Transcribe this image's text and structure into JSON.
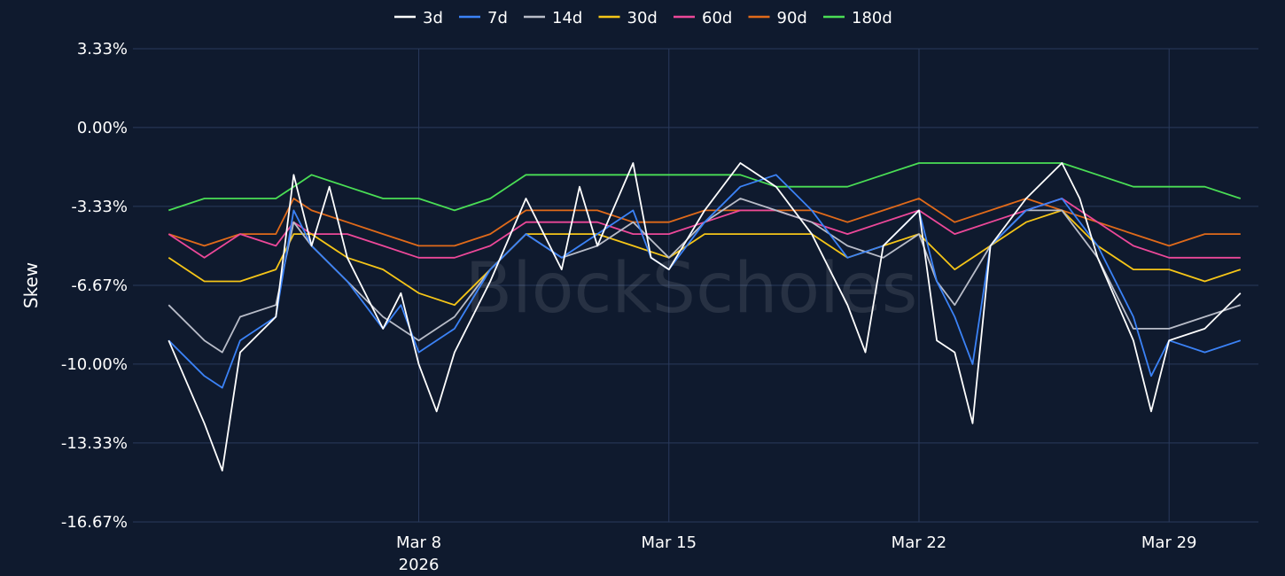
{
  "chart_data": {
    "type": "line",
    "ylabel": "Skew",
    "watermark": "BlockScholes",
    "yticks": [
      3.33,
      0.0,
      -3.33,
      -6.67,
      -10.0,
      -13.33,
      -16.67
    ],
    "ytick_labels": [
      "3.33%",
      "0.00%",
      "-3.33%",
      "-6.67%",
      "-10.00%",
      "-13.33%",
      "-16.67%"
    ],
    "ylim": [
      -16.67,
      3.33
    ],
    "xlim": [
      "2026-02-28",
      "2026-03-31"
    ],
    "xticks": [
      {
        "date": "2026-03-08",
        "label": "Mar 8",
        "sublabel": "2026"
      },
      {
        "date": "2026-03-15",
        "label": "Mar 15",
        "sublabel": ""
      },
      {
        "date": "2026-03-22",
        "label": "Mar 22",
        "sublabel": ""
      },
      {
        "date": "2026-03-29",
        "label": "Mar 29",
        "sublabel": ""
      }
    ],
    "grid": true,
    "legend_position": "top-center",
    "series": [
      {
        "name": "3d",
        "color": "#ffffff",
        "points": [
          [
            "2026-03-01",
            -9.0
          ],
          [
            "2026-03-02",
            -12.5
          ],
          [
            "2026-03-02T12",
            -14.5
          ],
          [
            "2026-03-03",
            -9.5
          ],
          [
            "2026-03-04",
            -8.0
          ],
          [
            "2026-03-04T12",
            -2.0
          ],
          [
            "2026-03-05",
            -5.0
          ],
          [
            "2026-03-05T12",
            -2.5
          ],
          [
            "2026-03-06",
            -5.5
          ],
          [
            "2026-03-07",
            -8.5
          ],
          [
            "2026-03-07T12",
            -7.0
          ],
          [
            "2026-03-08",
            -10.0
          ],
          [
            "2026-03-08T12",
            -12.0
          ],
          [
            "2026-03-09",
            -9.5
          ],
          [
            "2026-03-10",
            -6.5
          ],
          [
            "2026-03-11",
            -3.0
          ],
          [
            "2026-03-12",
            -6.0
          ],
          [
            "2026-03-12T12",
            -2.5
          ],
          [
            "2026-03-13",
            -5.0
          ],
          [
            "2026-03-14",
            -1.5
          ],
          [
            "2026-03-14T12",
            -5.5
          ],
          [
            "2026-03-15",
            -6.0
          ],
          [
            "2026-03-16",
            -3.5
          ],
          [
            "2026-03-17",
            -1.5
          ],
          [
            "2026-03-18",
            -2.5
          ],
          [
            "2026-03-19",
            -4.5
          ],
          [
            "2026-03-20",
            -7.5
          ],
          [
            "2026-03-20T12",
            -9.5
          ],
          [
            "2026-03-21",
            -5.0
          ],
          [
            "2026-03-22",
            -3.5
          ],
          [
            "2026-03-22T12",
            -9.0
          ],
          [
            "2026-03-23",
            -9.5
          ],
          [
            "2026-03-23T12",
            -12.5
          ],
          [
            "2026-03-24",
            -5.0
          ],
          [
            "2026-03-25",
            -3.0
          ],
          [
            "2026-03-26",
            -1.5
          ],
          [
            "2026-03-26T12",
            -3.0
          ],
          [
            "2026-03-27",
            -5.5
          ],
          [
            "2026-03-28",
            -9.0
          ],
          [
            "2026-03-28T12",
            -12.0
          ],
          [
            "2026-03-29",
            -9.0
          ],
          [
            "2026-03-30",
            -8.5
          ],
          [
            "2026-03-31",
            -7.0
          ]
        ]
      },
      {
        "name": "7d",
        "color": "#3b82f6",
        "points": [
          [
            "2026-03-01",
            -9.0
          ],
          [
            "2026-03-02",
            -10.5
          ],
          [
            "2026-03-02T12",
            -11.0
          ],
          [
            "2026-03-03",
            -9.0
          ],
          [
            "2026-03-04",
            -8.0
          ],
          [
            "2026-03-04T12",
            -3.5
          ],
          [
            "2026-03-05",
            -5.0
          ],
          [
            "2026-03-06",
            -6.5
          ],
          [
            "2026-03-07",
            -8.5
          ],
          [
            "2026-03-07T12",
            -7.5
          ],
          [
            "2026-03-08",
            -9.5
          ],
          [
            "2026-03-09",
            -8.5
          ],
          [
            "2026-03-10",
            -6.0
          ],
          [
            "2026-03-11",
            -4.5
          ],
          [
            "2026-03-12",
            -5.5
          ],
          [
            "2026-03-13",
            -4.5
          ],
          [
            "2026-03-14",
            -3.5
          ],
          [
            "2026-03-14T12",
            -5.5
          ],
          [
            "2026-03-15",
            -6.0
          ],
          [
            "2026-03-16",
            -4.0
          ],
          [
            "2026-03-17",
            -2.5
          ],
          [
            "2026-03-18",
            -2.0
          ],
          [
            "2026-03-19",
            -3.5
          ],
          [
            "2026-03-20",
            -5.5
          ],
          [
            "2026-03-21",
            -5.0
          ],
          [
            "2026-03-22",
            -3.5
          ],
          [
            "2026-03-22T12",
            -6.5
          ],
          [
            "2026-03-23",
            -8.0
          ],
          [
            "2026-03-23T12",
            -10.0
          ],
          [
            "2026-03-24",
            -5.0
          ],
          [
            "2026-03-25",
            -3.5
          ],
          [
            "2026-03-26",
            -3.0
          ],
          [
            "2026-03-27",
            -5.0
          ],
          [
            "2026-03-28",
            -8.0
          ],
          [
            "2026-03-28T12",
            -10.5
          ],
          [
            "2026-03-29",
            -9.0
          ],
          [
            "2026-03-30",
            -9.5
          ],
          [
            "2026-03-31",
            -9.0
          ]
        ]
      },
      {
        "name": "14d",
        "color": "#b8bcc8",
        "points": [
          [
            "2026-03-01",
            -7.5
          ],
          [
            "2026-03-02",
            -9.0
          ],
          [
            "2026-03-02T12",
            -9.5
          ],
          [
            "2026-03-03",
            -8.0
          ],
          [
            "2026-03-04",
            -7.5
          ],
          [
            "2026-03-04T12",
            -4.0
          ],
          [
            "2026-03-05",
            -5.0
          ],
          [
            "2026-03-06",
            -6.5
          ],
          [
            "2026-03-07",
            -8.0
          ],
          [
            "2026-03-08",
            -9.0
          ],
          [
            "2026-03-09",
            -8.0
          ],
          [
            "2026-03-10",
            -6.0
          ],
          [
            "2026-03-11",
            -4.5
          ],
          [
            "2026-03-12",
            -5.5
          ],
          [
            "2026-03-13",
            -5.0
          ],
          [
            "2026-03-14",
            -4.0
          ],
          [
            "2026-03-15",
            -5.5
          ],
          [
            "2026-03-16",
            -4.0
          ],
          [
            "2026-03-17",
            -3.0
          ],
          [
            "2026-03-18",
            -3.5
          ],
          [
            "2026-03-19",
            -4.0
          ],
          [
            "2026-03-20",
            -5.0
          ],
          [
            "2026-03-21",
            -5.5
          ],
          [
            "2026-03-22",
            -4.5
          ],
          [
            "2026-03-22T12",
            -6.5
          ],
          [
            "2026-03-23",
            -7.5
          ],
          [
            "2026-03-24",
            -5.0
          ],
          [
            "2026-03-25",
            -3.5
          ],
          [
            "2026-03-26",
            -3.5
          ],
          [
            "2026-03-27",
            -5.5
          ],
          [
            "2026-03-28",
            -8.5
          ],
          [
            "2026-03-29",
            -8.5
          ],
          [
            "2026-03-30",
            -8.0
          ],
          [
            "2026-03-31",
            -7.5
          ]
        ]
      },
      {
        "name": "30d",
        "color": "#f5c518",
        "points": [
          [
            "2026-03-01",
            -5.5
          ],
          [
            "2026-03-02",
            -6.5
          ],
          [
            "2026-03-03",
            -6.5
          ],
          [
            "2026-03-04",
            -6.0
          ],
          [
            "2026-03-04T12",
            -4.5
          ],
          [
            "2026-03-05",
            -4.5
          ],
          [
            "2026-03-06",
            -5.5
          ],
          [
            "2026-03-07",
            -6.0
          ],
          [
            "2026-03-08",
            -7.0
          ],
          [
            "2026-03-09",
            -7.5
          ],
          [
            "2026-03-10",
            -6.0
          ],
          [
            "2026-03-11",
            -4.5
          ],
          [
            "2026-03-12",
            -4.5
          ],
          [
            "2026-03-13",
            -4.5
          ],
          [
            "2026-03-14",
            -5.0
          ],
          [
            "2026-03-15",
            -5.5
          ],
          [
            "2026-03-16",
            -4.5
          ],
          [
            "2026-03-17",
            -4.5
          ],
          [
            "2026-03-18",
            -4.5
          ],
          [
            "2026-03-19",
            -4.5
          ],
          [
            "2026-03-20",
            -5.5
          ],
          [
            "2026-03-21",
            -5.0
          ],
          [
            "2026-03-22",
            -4.5
          ],
          [
            "2026-03-23",
            -6.0
          ],
          [
            "2026-03-24",
            -5.0
          ],
          [
            "2026-03-25",
            -4.0
          ],
          [
            "2026-03-26",
            -3.5
          ],
          [
            "2026-03-27",
            -5.0
          ],
          [
            "2026-03-28",
            -6.0
          ],
          [
            "2026-03-29",
            -6.0
          ],
          [
            "2026-03-30",
            -6.5
          ],
          [
            "2026-03-31",
            -6.0
          ]
        ]
      },
      {
        "name": "60d",
        "color": "#ec4899",
        "points": [
          [
            "2026-03-01",
            -4.5
          ],
          [
            "2026-03-02",
            -5.5
          ],
          [
            "2026-03-03",
            -4.5
          ],
          [
            "2026-03-04",
            -5.0
          ],
          [
            "2026-03-04T12",
            -4.0
          ],
          [
            "2026-03-05",
            -4.5
          ],
          [
            "2026-03-06",
            -4.5
          ],
          [
            "2026-03-07",
            -5.0
          ],
          [
            "2026-03-08",
            -5.5
          ],
          [
            "2026-03-09",
            -5.5
          ],
          [
            "2026-03-10",
            -5.0
          ],
          [
            "2026-03-11",
            -4.0
          ],
          [
            "2026-03-12",
            -4.0
          ],
          [
            "2026-03-13",
            -4.0
          ],
          [
            "2026-03-14",
            -4.5
          ],
          [
            "2026-03-15",
            -4.5
          ],
          [
            "2026-03-16",
            -4.0
          ],
          [
            "2026-03-17",
            -3.5
          ],
          [
            "2026-03-18",
            -3.5
          ],
          [
            "2026-03-19",
            -4.0
          ],
          [
            "2026-03-20",
            -4.5
          ],
          [
            "2026-03-21",
            -4.0
          ],
          [
            "2026-03-22",
            -3.5
          ],
          [
            "2026-03-23",
            -4.5
          ],
          [
            "2026-03-24",
            -4.0
          ],
          [
            "2026-03-25",
            -3.5
          ],
          [
            "2026-03-26",
            -3.0
          ],
          [
            "2026-03-27",
            -4.0
          ],
          [
            "2026-03-28",
            -5.0
          ],
          [
            "2026-03-29",
            -5.5
          ],
          [
            "2026-03-30",
            -5.5
          ],
          [
            "2026-03-31",
            -5.5
          ]
        ]
      },
      {
        "name": "90d",
        "color": "#e06a1a",
        "points": [
          [
            "2026-03-01",
            -4.5
          ],
          [
            "2026-03-02",
            -5.0
          ],
          [
            "2026-03-03",
            -4.5
          ],
          [
            "2026-03-04",
            -4.5
          ],
          [
            "2026-03-04T12",
            -3.0
          ],
          [
            "2026-03-05",
            -3.5
          ],
          [
            "2026-03-06",
            -4.0
          ],
          [
            "2026-03-07",
            -4.5
          ],
          [
            "2026-03-08",
            -5.0
          ],
          [
            "2026-03-09",
            -5.0
          ],
          [
            "2026-03-10",
            -4.5
          ],
          [
            "2026-03-11",
            -3.5
          ],
          [
            "2026-03-12",
            -3.5
          ],
          [
            "2026-03-13",
            -3.5
          ],
          [
            "2026-03-14",
            -4.0
          ],
          [
            "2026-03-15",
            -4.0
          ],
          [
            "2026-03-16",
            -3.5
          ],
          [
            "2026-03-17",
            -3.5
          ],
          [
            "2026-03-18",
            -3.5
          ],
          [
            "2026-03-19",
            -3.5
          ],
          [
            "2026-03-20",
            -4.0
          ],
          [
            "2026-03-21",
            -3.5
          ],
          [
            "2026-03-22",
            -3.0
          ],
          [
            "2026-03-23",
            -4.0
          ],
          [
            "2026-03-24",
            -3.5
          ],
          [
            "2026-03-25",
            -3.0
          ],
          [
            "2026-03-26",
            -3.5
          ],
          [
            "2026-03-27",
            -4.0
          ],
          [
            "2026-03-28",
            -4.5
          ],
          [
            "2026-03-29",
            -5.0
          ],
          [
            "2026-03-30",
            -4.5
          ],
          [
            "2026-03-31",
            -4.5
          ]
        ]
      },
      {
        "name": "180d",
        "color": "#4ade55",
        "points": [
          [
            "2026-03-01",
            -3.5
          ],
          [
            "2026-03-02",
            -3.0
          ],
          [
            "2026-03-03",
            -3.0
          ],
          [
            "2026-03-04",
            -3.0
          ],
          [
            "2026-03-04T12",
            -2.5
          ],
          [
            "2026-03-05",
            -2.0
          ],
          [
            "2026-03-06",
            -2.5
          ],
          [
            "2026-03-07",
            -3.0
          ],
          [
            "2026-03-08",
            -3.0
          ],
          [
            "2026-03-09",
            -3.5
          ],
          [
            "2026-03-10",
            -3.0
          ],
          [
            "2026-03-11",
            -2.0
          ],
          [
            "2026-03-12",
            -2.0
          ],
          [
            "2026-03-13",
            -2.0
          ],
          [
            "2026-03-14",
            -2.0
          ],
          [
            "2026-03-15",
            -2.0
          ],
          [
            "2026-03-16",
            -2.0
          ],
          [
            "2026-03-17",
            -2.0
          ],
          [
            "2026-03-18",
            -2.5
          ],
          [
            "2026-03-19",
            -2.5
          ],
          [
            "2026-03-20",
            -2.5
          ],
          [
            "2026-03-21",
            -2.0
          ],
          [
            "2026-03-22",
            -1.5
          ],
          [
            "2026-03-23",
            -1.5
          ],
          [
            "2026-03-24",
            -1.5
          ],
          [
            "2026-03-25",
            -1.5
          ],
          [
            "2026-03-26",
            -1.5
          ],
          [
            "2026-03-27",
            -2.0
          ],
          [
            "2026-03-28",
            -2.5
          ],
          [
            "2026-03-29",
            -2.5
          ],
          [
            "2026-03-30",
            -2.5
          ],
          [
            "2026-03-31",
            -3.0
          ]
        ]
      }
    ]
  }
}
